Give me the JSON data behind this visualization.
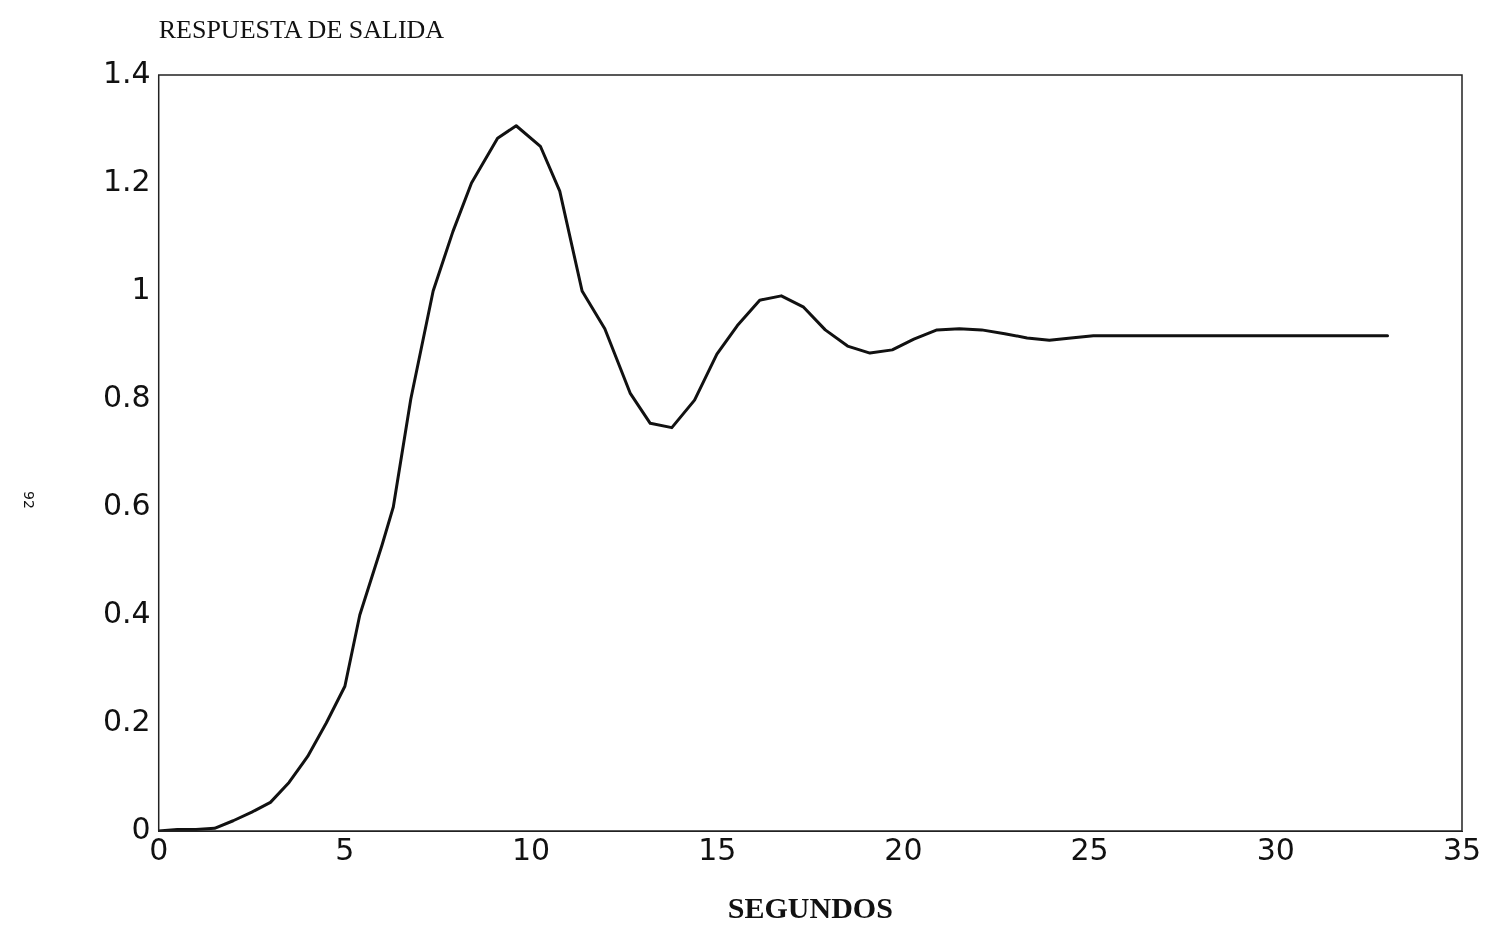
{
  "chart_data": {
    "type": "line",
    "title": "RESPUESTA DE SALIDA",
    "xlabel": "SEGUNDOS",
    "annotations": [
      "92"
    ],
    "x": [
      0,
      0.5,
      1,
      1.5,
      2,
      2.5,
      3,
      3.5,
      4,
      4.5,
      5,
      5.4,
      6,
      6.3,
      6.77,
      7.37,
      7.9,
      8.4,
      9.1,
      9.6,
      10.25,
      10.77,
      11.37,
      11.98,
      12.66,
      13.2,
      13.78,
      14.39,
      14.99,
      15.54,
      16.14,
      16.72,
      17.32,
      17.9,
      18.5,
      19.1,
      19.7,
      20.28,
      20.9,
      21.5,
      22.1,
      22.72,
      23.32,
      23.92,
      24.5,
      25.1,
      26,
      28,
      30,
      33
    ],
    "series": [
      {
        "color": "#111111",
        "values": [
          0,
          0.003,
          0.003,
          0.005,
          0.019,
          0.035,
          0.053,
          0.09,
          0.138,
          0.2,
          0.268,
          0.4,
          0.53,
          0.6,
          0.8,
          1.0,
          1.11,
          1.2,
          1.283,
          1.306,
          1.268,
          1.185,
          1.0,
          0.93,
          0.811,
          0.755,
          0.747,
          0.798,
          0.883,
          0.936,
          0.983,
          0.991,
          0.97,
          0.928,
          0.898,
          0.885,
          0.891,
          0.911,
          0.928,
          0.93,
          0.928,
          0.921,
          0.913,
          0.909,
          0.913,
          0.917,
          0.917,
          0.917,
          0.917,
          0.917
        ]
      }
    ],
    "xlim": [
      0,
      35
    ],
    "xticks": [
      0,
      5,
      10,
      15,
      20,
      25,
      30,
      35
    ],
    "ylim": [
      0,
      1.4
    ],
    "yticks": [
      0,
      0.2,
      0.4,
      0.6,
      0.8,
      1,
      1.2,
      1.4
    ],
    "grid": false,
    "legend": false,
    "marker": "none",
    "line_style": "solid"
  }
}
